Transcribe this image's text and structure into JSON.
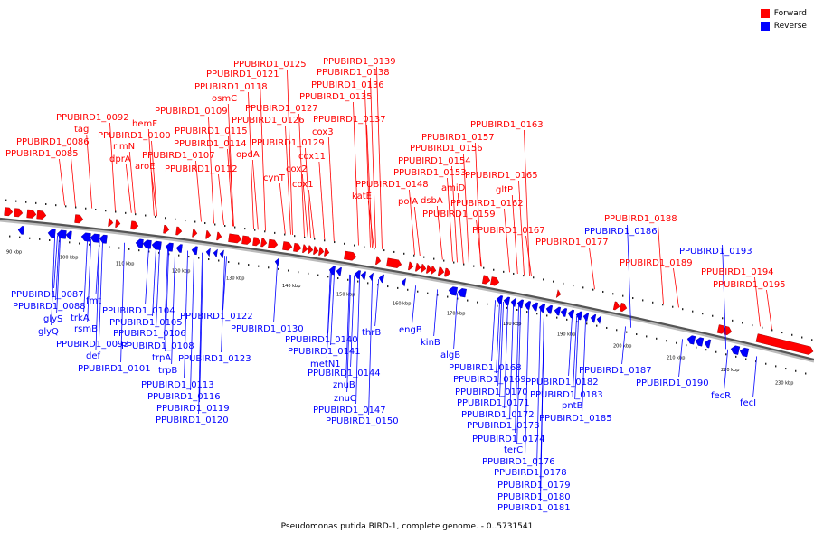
{
  "legend": {
    "forward": {
      "label": "Forward",
      "color": "#ff0000"
    },
    "reverse": {
      "label": "Reverse",
      "color": "#0000ff"
    }
  },
  "caption": "Pseudomonas putida BIRD-1, complete genome. - 0..5731541",
  "scale_labels": [
    "90 kbp",
    "100 kbp",
    "110 kbp",
    "120 kbp",
    "130 kbp",
    "140 kbp",
    "150 kbp",
    "160 kbp",
    "170 kbp",
    "180 kbp",
    "190 kbp",
    "200 kbp",
    "210 kbp",
    "220 kbp",
    "230 kbp"
  ],
  "forward_labels": [
    "PPUBIRD1_0086",
    "PPUBIRD1_0085",
    "PPUBIRD1_0092",
    "tag",
    "rimN",
    "dprA",
    "PPUBIRD1_0100",
    "hemF",
    "aroE",
    "PPUBIRD1_0107",
    "PPUBIRD1_0112",
    "PPUBIRD1_0114",
    "PPUBIRD1_0115",
    "PPUBIRD1_0109",
    "osmC",
    "PPUBIRD1_0118",
    "PPUBIRD1_0121",
    "PPUBIRD1_0125",
    "opdA",
    "PPUBIRD1_0126",
    "PPUBIRD1_0127",
    "PPUBIRD1_0129",
    "cynT",
    "cox2",
    "cox1",
    "cox11",
    "cox3",
    "PPUBIRD1_0135",
    "PPUBIRD1_0136",
    "PPUBIRD1_0138",
    "PPUBIRD1_0139",
    "PPUBIRD1_0137",
    "katE",
    "PPUBIRD1_0148",
    "polA",
    "dsbA",
    "PPUBIRD1_0153",
    "PPUBIRD1_0154",
    "PPUBIRD1_0156",
    "PPUBIRD1_0157",
    "amiD",
    "PPUBIRD1_0159",
    "PPUBIRD1_0162",
    "gltP",
    "PPUBIRD1_0165",
    "PPUBIRD1_0163",
    "PPUBIRD1_0167",
    "PPUBIRD1_0177",
    "PPUBIRD1_0188",
    "PPUBIRD1_0189",
    "PPUBIRD1_0194",
    "PPUBIRD1_0195"
  ],
  "reverse_labels": [
    "PPUBIRD1_0087",
    "PPUBIRD1_0088",
    "glyS",
    "glyQ",
    "trkA",
    "rsmB",
    "fmt",
    "PPUBIRD1_0093",
    "def",
    "PPUBIRD1_0101",
    "PPUBIRD1_0104",
    "PPUBIRD1_0105",
    "PPUBIRD1_0106",
    "PPUBIRD1_0108",
    "trpA",
    "trpB",
    "PPUBIRD1_0113",
    "PPUBIRD1_0116",
    "PPUBIRD1_0119",
    "PPUBIRD1_0120",
    "PPUBIRD1_0122",
    "PPUBIRD1_0123",
    "PPUBIRD1_0130",
    "PPUBIRD1_0140",
    "PPUBIRD1_0141",
    "metN1",
    "PPUBIRD1_0144",
    "znuB",
    "znuC",
    "PPUBIRD1_0147",
    "PPUBIRD1_0150",
    "thrB",
    "engB",
    "kinB",
    "algB",
    "PPUBIRD1_0168",
    "PPUBIRD1_0169",
    "PPUBIRD1_0170",
    "PPUBIRD1_0171",
    "PPUBIRD1_0172",
    "PPUBIRD1_0173",
    "PPUBIRD1_0174",
    "terC",
    "PPUBIRD1_0176",
    "PPUBIRD1_0178",
    "PPUBIRD1_0179",
    "PPUBIRD1_0180",
    "PPUBIRD1_0181",
    "PPUBIRD1_0182",
    "PPUBIRD1_0183",
    "pntB",
    "PPUBIRD1_0185",
    "PPUBIRD1_0186",
    "PPUBIRD1_0187",
    "PPUBIRD1_0190",
    "PPUBIRD1_0193",
    "fecR",
    "fecI"
  ]
}
